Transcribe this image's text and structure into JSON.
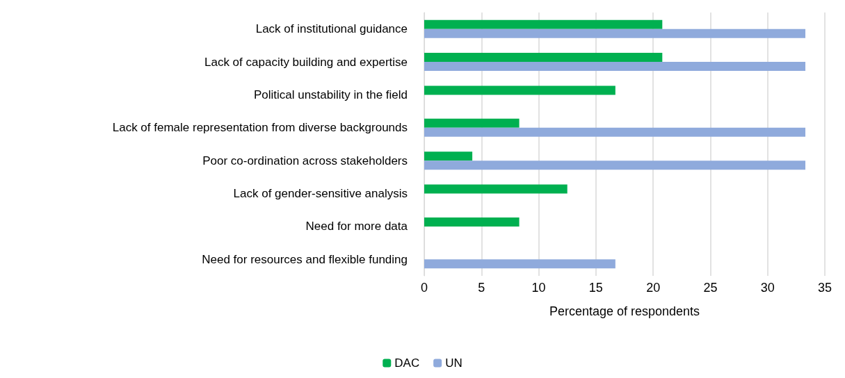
{
  "chart_data": {
    "type": "bar",
    "orientation": "horizontal",
    "xlabel": "Percentage of respondents",
    "categories": [
      "Lack of institutional guidance",
      "Lack of capacity building and expertise",
      "Political unstability in the field",
      "Lack of female representation from diverse backgrounds",
      "Poor co-ordination across stakeholders",
      "Lack of gender-sensitive analysis",
      "Need for more data",
      "Need for resources and flexible funding"
    ],
    "series": [
      {
        "name": "DAC",
        "color": "#00b050",
        "values": [
          20.8,
          20.8,
          16.7,
          8.3,
          4.2,
          12.5,
          8.3,
          null
        ]
      },
      {
        "name": "UN",
        "color": "#8faadc",
        "values": [
          33.3,
          33.3,
          null,
          33.3,
          33.3,
          null,
          null,
          16.7
        ]
      }
    ],
    "xlim": [
      0,
      35
    ],
    "xticks": [
      0,
      5,
      10,
      15,
      20,
      25,
      30,
      35
    ],
    "grid": "x",
    "legend": "bottom"
  }
}
